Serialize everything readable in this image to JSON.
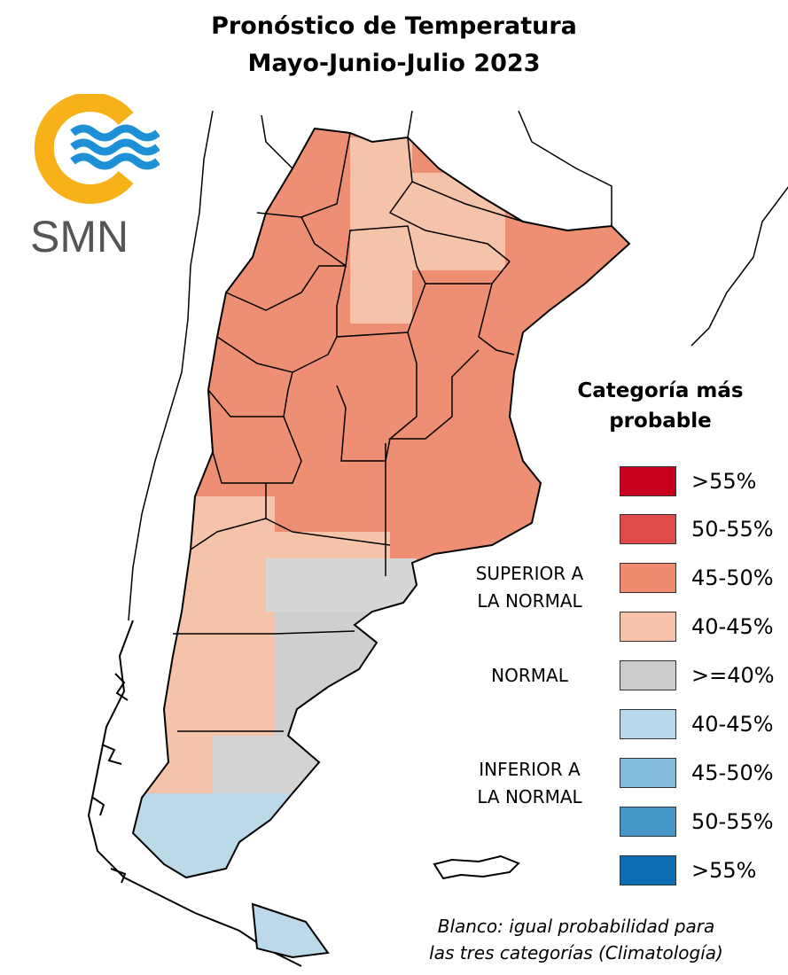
{
  "title": {
    "line1": "Pronóstico de Temperatura",
    "line2": "Mayo-Junio-Julio 2023"
  },
  "logo": {
    "text": "SMN",
    "icon": "smn-sun-waves-logo"
  },
  "legend": {
    "title_line1": "Categoría más",
    "title_line2": "probable",
    "items": [
      {
        "label": ">55%",
        "color": "#c8001e"
      },
      {
        "label": "50-55%",
        "color": "#df4a4d"
      },
      {
        "label": "45-50%",
        "color": "#ee8a6e"
      },
      {
        "label": "40-45%",
        "color": "#f5c2aa"
      },
      {
        "label": ">=40%",
        "color": "#cccccc"
      },
      {
        "label": "40-45%",
        "color": "#b8d8eb"
      },
      {
        "label": "45-50%",
        "color": "#83bcdb"
      },
      {
        "label": "50-55%",
        "color": "#4696c8"
      },
      {
        "label": ">55%",
        "color": "#0e6cb4"
      }
    ],
    "groups": {
      "superior_line1": "SUPERIOR A",
      "superior_line2": "LA NORMAL",
      "normal": "NORMAL",
      "inferior_line1": "INFERIOR A",
      "inferior_line2": "LA NORMAL"
    }
  },
  "note": {
    "line1": "Blanco: igual probabilidad para",
    "line2": "las tres categorías (Climatología)"
  }
}
